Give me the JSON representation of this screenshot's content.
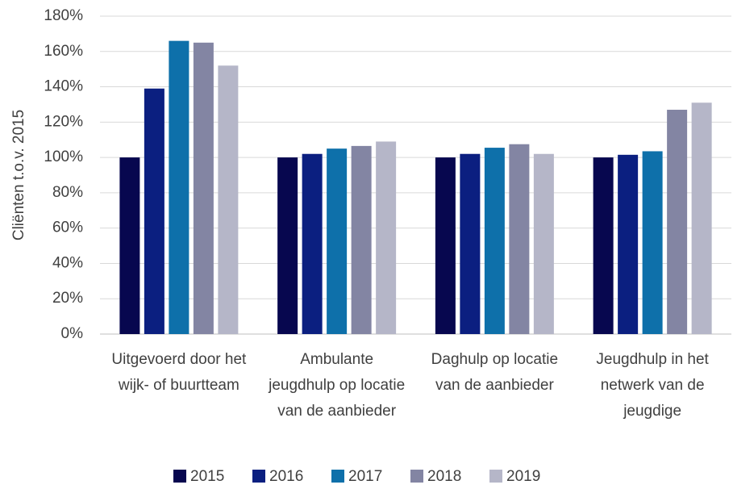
{
  "chart_data": {
    "type": "bar",
    "y_label": "Cliënten t.o.v. 2015",
    "categories": [
      "Uitgevoerd door het wijk- of buurtteam",
      "Ambulante jeugdhulp op locatie van de aanbieder",
      "Daghulp op locatie van de aanbieder",
      "Jeugdhulp in het netwerk van de jeugdige"
    ],
    "series": [
      {
        "name": "2015",
        "color": "#07074f",
        "values": [
          100,
          100,
          100,
          100
        ]
      },
      {
        "name": "2016",
        "color": "#0b1f80",
        "values": [
          139,
          102,
          102,
          101.5
        ]
      },
      {
        "name": "2017",
        "color": "#0e70aa",
        "values": [
          166,
          105,
          105.5,
          103.5
        ]
      },
      {
        "name": "2018",
        "color": "#8385a3",
        "values": [
          165,
          106.5,
          107.5,
          127
        ]
      },
      {
        "name": "2019",
        "color": "#b5b6c8",
        "values": [
          152,
          109,
          102,
          131
        ]
      }
    ],
    "ylim": [
      0,
      180
    ],
    "yticks": [
      {
        "value": 0,
        "label": "0%"
      },
      {
        "value": 20,
        "label": "20%"
      },
      {
        "value": 40,
        "label": "40%"
      },
      {
        "value": 60,
        "label": "60%"
      },
      {
        "value": 80,
        "label": "80%"
      },
      {
        "value": 100,
        "label": "100%"
      },
      {
        "value": 120,
        "label": "120%"
      },
      {
        "value": 140,
        "label": "140%"
      },
      {
        "value": 160,
        "label": "160%"
      },
      {
        "value": 180,
        "label": "180%"
      }
    ],
    "grid": true,
    "legend": "bottom"
  }
}
